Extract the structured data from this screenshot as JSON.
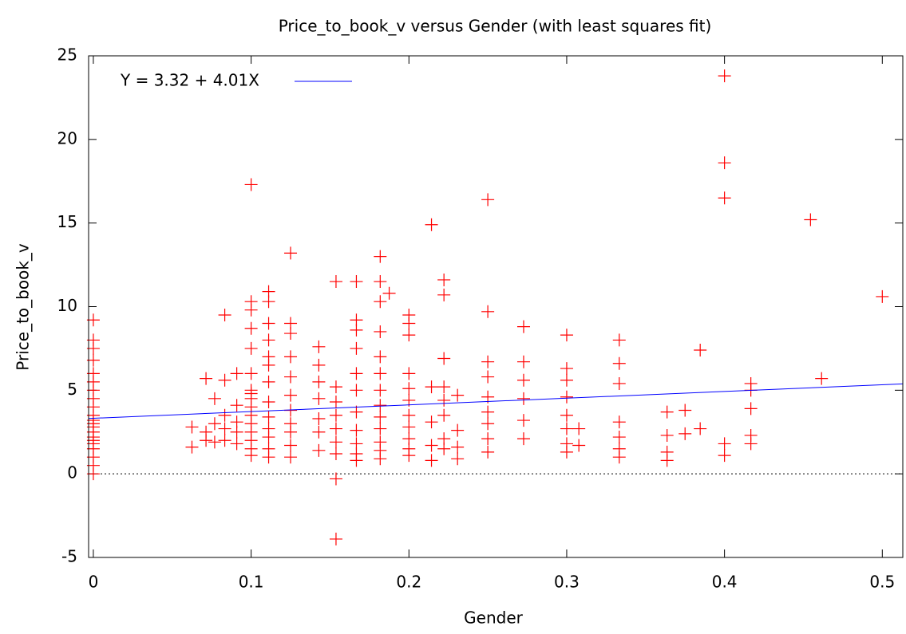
{
  "chart_data": {
    "type": "scatter",
    "title": "Price_to_book_v versus Gender (with least squares fit)",
    "x_label": "Gender",
    "y_label": "Price_to_book_v",
    "xlim": [
      -0.003,
      0.513
    ],
    "ylim": [
      -5,
      25
    ],
    "xticks": [
      0,
      0.1,
      0.2,
      0.3,
      0.4,
      0.5
    ],
    "yticks": [
      -5,
      0,
      5,
      10,
      15,
      20,
      25
    ],
    "zero_line": true,
    "legend_position": "top-left",
    "series": [
      {
        "color": "#ff0000",
        "x": [
          0,
          0,
          0,
          0,
          0,
          0,
          0,
          0,
          0,
          0,
          0,
          0,
          0,
          0,
          0,
          0,
          0,
          0,
          0,
          0,
          0,
          0.0625,
          0.0625,
          0.0714,
          0.0714,
          0.0714,
          0.0769,
          0.0769,
          0.0769,
          0.0833,
          0.0833,
          0.0833,
          0.0833,
          0.0833,
          0.0909,
          0.0909,
          0.0909,
          0.0909,
          0.0909,
          0.1,
          0.1,
          0.1,
          0.1,
          0.1,
          0.1,
          0.1,
          0.1,
          0.1,
          0.1,
          0.1,
          0.1,
          0.1,
          0.1,
          0.1,
          0.1,
          0.1111,
          0.1111,
          0.1111,
          0.1111,
          0.1111,
          0.1111,
          0.1111,
          0.1111,
          0.1111,
          0.1111,
          0.1111,
          0.1111,
          0.1111,
          0.125,
          0.125,
          0.125,
          0.125,
          0.125,
          0.125,
          0.125,
          0.125,
          0.125,
          0.125,
          0.125,
          0.1429,
          0.1429,
          0.1429,
          0.1429,
          0.1429,
          0.1429,
          0.1429,
          0.1538,
          0.1538,
          0.1538,
          0.1538,
          0.1538,
          0.1538,
          0.1538,
          0.1538,
          0.1538,
          0.1667,
          0.1667,
          0.1667,
          0.1667,
          0.1667,
          0.1667,
          0.1667,
          0.1667,
          0.1667,
          0.1667,
          0.1667,
          0.1818,
          0.1818,
          0.1818,
          0.1818,
          0.1818,
          0.1818,
          0.1818,
          0.1818,
          0.1818,
          0.1818,
          0.1818,
          0.1818,
          0.1818,
          0.1875,
          0.2,
          0.2,
          0.2,
          0.2,
          0.2,
          0.2,
          0.2,
          0.2,
          0.2,
          0.2,
          0.2,
          0.2143,
          0.2143,
          0.2143,
          0.2143,
          0.2143,
          0.2222,
          0.2222,
          0.2222,
          0.2222,
          0.2222,
          0.2222,
          0.2222,
          0.2222,
          0.2308,
          0.2308,
          0.2308,
          0.2308,
          0.25,
          0.25,
          0.25,
          0.25,
          0.25,
          0.25,
          0.25,
          0.25,
          0.25,
          0.2727,
          0.2727,
          0.2727,
          0.2727,
          0.2727,
          0.2727,
          0.3,
          0.3,
          0.3,
          0.3,
          0.3,
          0.3,
          0.3,
          0.3,
          0.3077,
          0.3077,
          0.3333,
          0.3333,
          0.3333,
          0.3333,
          0.3333,
          0.3333,
          0.3333,
          0.3636,
          0.3636,
          0.3636,
          0.3636,
          0.375,
          0.375,
          0.3846,
          0.3846,
          0.4,
          0.4,
          0.4,
          0.4,
          0.4,
          0.4167,
          0.4167,
          0.4167,
          0.4167,
          0.4167,
          0.4545,
          0.4615,
          0.5
        ],
        "values": [
          9.2,
          8,
          7.5,
          6.8,
          6,
          5.5,
          5,
          4.5,
          4,
          3.5,
          3.2,
          3,
          2.8,
          2.5,
          2.2,
          2,
          1.8,
          1.5,
          1,
          0.5,
          0,
          1.6,
          2.8,
          5.7,
          2.5,
          2,
          4.5,
          3,
          1.9,
          9.5,
          5.6,
          3.5,
          2.7,
          2,
          6,
          4.1,
          3.1,
          2.5,
          1.8,
          17.3,
          10.3,
          9.8,
          8.7,
          7.5,
          6,
          5,
          4.8,
          4.5,
          4,
          3.5,
          3,
          2.5,
          2,
          1.5,
          1.1,
          10.9,
          10.3,
          9,
          8,
          7,
          6.5,
          5.5,
          4.3,
          3.4,
          2.7,
          2.2,
          1.5,
          1,
          13.2,
          9,
          8.4,
          7,
          5.8,
          4.7,
          3.8,
          3,
          2.5,
          1.7,
          1,
          7.6,
          6.5,
          5.5,
          4.5,
          3.3,
          2.5,
          1.4,
          11.5,
          5.2,
          4.3,
          3.5,
          2.7,
          1.9,
          1.2,
          -0.3,
          -3.9,
          11.5,
          9.2,
          8.6,
          7.5,
          6,
          5,
          3.7,
          2.6,
          1.8,
          1.2,
          0.8,
          13,
          11.5,
          10.3,
          8.5,
          7,
          6,
          5,
          4.1,
          3.4,
          2.7,
          1.9,
          1.4,
          0.9,
          10.8,
          9.5,
          9,
          8.3,
          6,
          5.1,
          4.4,
          3.5,
          2.8,
          2.1,
          1.5,
          1.1,
          14.9,
          5.2,
          3.1,
          1.7,
          0.8,
          11.6,
          10.7,
          6.9,
          5.2,
          4.4,
          3.5,
          2.1,
          1.5,
          4.7,
          2.6,
          1.6,
          0.9,
          16.4,
          9.7,
          6.7,
          5.8,
          4.6,
          3.7,
          3,
          2.1,
          1.3,
          8.8,
          6.7,
          5.6,
          4.5,
          3.2,
          2.1,
          8.3,
          6.3,
          5.6,
          4.6,
          3.5,
          2.7,
          1.8,
          1.3,
          2.7,
          1.7,
          8,
          6.6,
          5.4,
          3.1,
          2.2,
          1.5,
          1,
          3.7,
          2.3,
          1.3,
          0.8,
          3.8,
          2.4,
          7.4,
          2.7,
          23.8,
          18.6,
          16.5,
          1.8,
          1.1,
          5.4,
          5,
          3.9,
          2.3,
          1.8,
          15.2,
          5.7,
          10.6
        ]
      }
    ],
    "fit": {
      "name": "Y = 3.32 + 4.01X",
      "color": "#0000ff",
      "x": [
        -0.003,
        0.513
      ],
      "values": [
        3.31,
        5.38
      ]
    }
  }
}
